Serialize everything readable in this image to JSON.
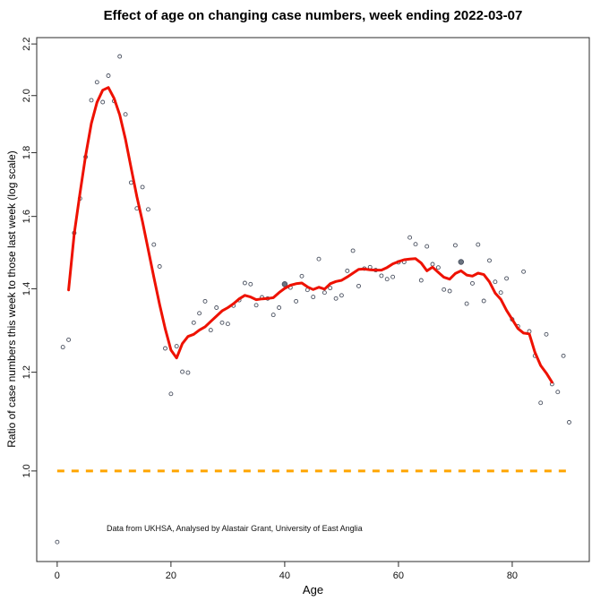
{
  "chart_data": {
    "type": "scatter",
    "title": "Effect of age on changing case numbers, week ending 2022-03-07",
    "xlabel": "Age",
    "ylabel": "Ratio of case numbers this week to those last week (log scale)",
    "annotation": "Data from UKHSA, Analysed by Alastair Grant, University of East Anglia",
    "y_scale": "log",
    "xlim": [
      -3.6,
      93.55
    ],
    "ylim": [
      0.846,
      2.226
    ],
    "x_ticks": [
      0,
      20,
      40,
      60,
      80
    ],
    "y_ticks": [
      1.0,
      1.2,
      1.4,
      1.6,
      1.8,
      2.0,
      2.2
    ],
    "grid": "off",
    "legend": "none",
    "colors": {
      "points": "#4a5160",
      "smooth_line": "#ee1100",
      "reference_line": "#ffa500",
      "axis": "#2b2b2b"
    },
    "reference_line": {
      "y": 1.0,
      "style": "dashed",
      "x_range": [
        0,
        90
      ]
    },
    "emphasized_ages": [
      40,
      71
    ],
    "points": [
      [
        0,
        0.877
      ],
      [
        1,
        1.257
      ],
      [
        2,
        1.274
      ],
      [
        3,
        1.552
      ],
      [
        4,
        1.654
      ],
      [
        5,
        1.786
      ],
      [
        6,
        1.983
      ],
      [
        7,
        2.05
      ],
      [
        8,
        1.976
      ],
      [
        9,
        2.075
      ],
      [
        10,
        1.98
      ],
      [
        11,
        2.15
      ],
      [
        12,
        1.932
      ],
      [
        13,
        1.703
      ],
      [
        14,
        1.624
      ],
      [
        15,
        1.689
      ],
      [
        16,
        1.621
      ],
      [
        17,
        1.519
      ],
      [
        18,
        1.459
      ],
      [
        19,
        1.254
      ],
      [
        20,
        1.153
      ],
      [
        21,
        1.259
      ],
      [
        22,
        1.201
      ],
      [
        23,
        1.199
      ],
      [
        24,
        1.315
      ],
      [
        25,
        1.338
      ],
      [
        26,
        1.368
      ],
      [
        27,
        1.297
      ],
      [
        28,
        1.352
      ],
      [
        29,
        1.315
      ],
      [
        30,
        1.312
      ],
      [
        31,
        1.357
      ],
      [
        32,
        1.371
      ],
      [
        33,
        1.415
      ],
      [
        34,
        1.412
      ],
      [
        35,
        1.358
      ],
      [
        36,
        1.378
      ],
      [
        37,
        1.375
      ],
      [
        38,
        1.334
      ],
      [
        39,
        1.352
      ],
      [
        40,
        1.412
      ],
      [
        41,
        1.403
      ],
      [
        42,
        1.368
      ],
      [
        43,
        1.433
      ],
      [
        44,
        1.397
      ],
      [
        45,
        1.379
      ],
      [
        46,
        1.479
      ],
      [
        47,
        1.39
      ],
      [
        48,
        1.402
      ],
      [
        49,
        1.375
      ],
      [
        50,
        1.383
      ],
      [
        51,
        1.447
      ],
      [
        52,
        1.502
      ],
      [
        53,
        1.407
      ],
      [
        54,
        1.453
      ],
      [
        55,
        1.457
      ],
      [
        56,
        1.449
      ],
      [
        57,
        1.434
      ],
      [
        58,
        1.425
      ],
      [
        59,
        1.431
      ],
      [
        60,
        1.47
      ],
      [
        61,
        1.471
      ],
      [
        62,
        1.539
      ],
      [
        63,
        1.52
      ],
      [
        64,
        1.422
      ],
      [
        65,
        1.514
      ],
      [
        66,
        1.465
      ],
      [
        67,
        1.456
      ],
      [
        68,
        1.398
      ],
      [
        69,
        1.394
      ],
      [
        70,
        1.517
      ],
      [
        71,
        1.471
      ],
      [
        72,
        1.362
      ],
      [
        73,
        1.414
      ],
      [
        74,
        1.519
      ],
      [
        75,
        1.369
      ],
      [
        76,
        1.475
      ],
      [
        77,
        1.418
      ],
      [
        78,
        1.39
      ],
      [
        79,
        1.427
      ],
      [
        80,
        1.323
      ],
      [
        81,
        1.306
      ],
      [
        82,
        1.445
      ],
      [
        83,
        1.294
      ],
      [
        84,
        1.237
      ],
      [
        85,
        1.134
      ],
      [
        86,
        1.287
      ],
      [
        87,
        1.174
      ],
      [
        88,
        1.157
      ],
      [
        89,
        1.237
      ],
      [
        90,
        1.094
      ]
    ],
    "smooth_line": [
      [
        2,
        1.397
      ],
      [
        3,
        1.55
      ],
      [
        4,
        1.67
      ],
      [
        5,
        1.79
      ],
      [
        6,
        1.9
      ],
      [
        7,
        1.975
      ],
      [
        8,
        2.02
      ],
      [
        9,
        2.03
      ],
      [
        10,
        1.99
      ],
      [
        11,
        1.93
      ],
      [
        12,
        1.845
      ],
      [
        13,
        1.75
      ],
      [
        14,
        1.66
      ],
      [
        15,
        1.585
      ],
      [
        16,
        1.505
      ],
      [
        17,
        1.43
      ],
      [
        18,
        1.36
      ],
      [
        19,
        1.3
      ],
      [
        20,
        1.25
      ],
      [
        21,
        1.232
      ],
      [
        22,
        1.265
      ],
      [
        23,
        1.282
      ],
      [
        24,
        1.287
      ],
      [
        25,
        1.297
      ],
      [
        26,
        1.305
      ],
      [
        27,
        1.318
      ],
      [
        28,
        1.331
      ],
      [
        29,
        1.344
      ],
      [
        30,
        1.352
      ],
      [
        31,
        1.362
      ],
      [
        32,
        1.374
      ],
      [
        33,
        1.383
      ],
      [
        34,
        1.379
      ],
      [
        35,
        1.372
      ],
      [
        36,
        1.374
      ],
      [
        37,
        1.375
      ],
      [
        38,
        1.377
      ],
      [
        39,
        1.39
      ],
      [
        40,
        1.401
      ],
      [
        41,
        1.409
      ],
      [
        42,
        1.413
      ],
      [
        43,
        1.415
      ],
      [
        44,
        1.405
      ],
      [
        45,
        1.398
      ],
      [
        46,
        1.404
      ],
      [
        47,
        1.399
      ],
      [
        48,
        1.413
      ],
      [
        49,
        1.419
      ],
      [
        50,
        1.422
      ],
      [
        51,
        1.431
      ],
      [
        52,
        1.441
      ],
      [
        53,
        1.451
      ],
      [
        54,
        1.452
      ],
      [
        55,
        1.45
      ],
      [
        56,
        1.449
      ],
      [
        57,
        1.449
      ],
      [
        58,
        1.456
      ],
      [
        59,
        1.466
      ],
      [
        60,
        1.472
      ],
      [
        61,
        1.477
      ],
      [
        62,
        1.479
      ],
      [
        63,
        1.48
      ],
      [
        64,
        1.468
      ],
      [
        65,
        1.447
      ],
      [
        66,
        1.457
      ],
      [
        67,
        1.443
      ],
      [
        68,
        1.43
      ],
      [
        69,
        1.425
      ],
      [
        70,
        1.44
      ],
      [
        71,
        1.447
      ],
      [
        72,
        1.436
      ],
      [
        73,
        1.433
      ],
      [
        74,
        1.441
      ],
      [
        75,
        1.437
      ],
      [
        76,
        1.418
      ],
      [
        77,
        1.389
      ],
      [
        78,
        1.373
      ],
      [
        79,
        1.345
      ],
      [
        80,
        1.323
      ],
      [
        81,
        1.301
      ],
      [
        82,
        1.29
      ],
      [
        83,
        1.288
      ],
      [
        84,
        1.245
      ],
      [
        85,
        1.215
      ],
      [
        86,
        1.198
      ],
      [
        87,
        1.178
      ]
    ]
  }
}
